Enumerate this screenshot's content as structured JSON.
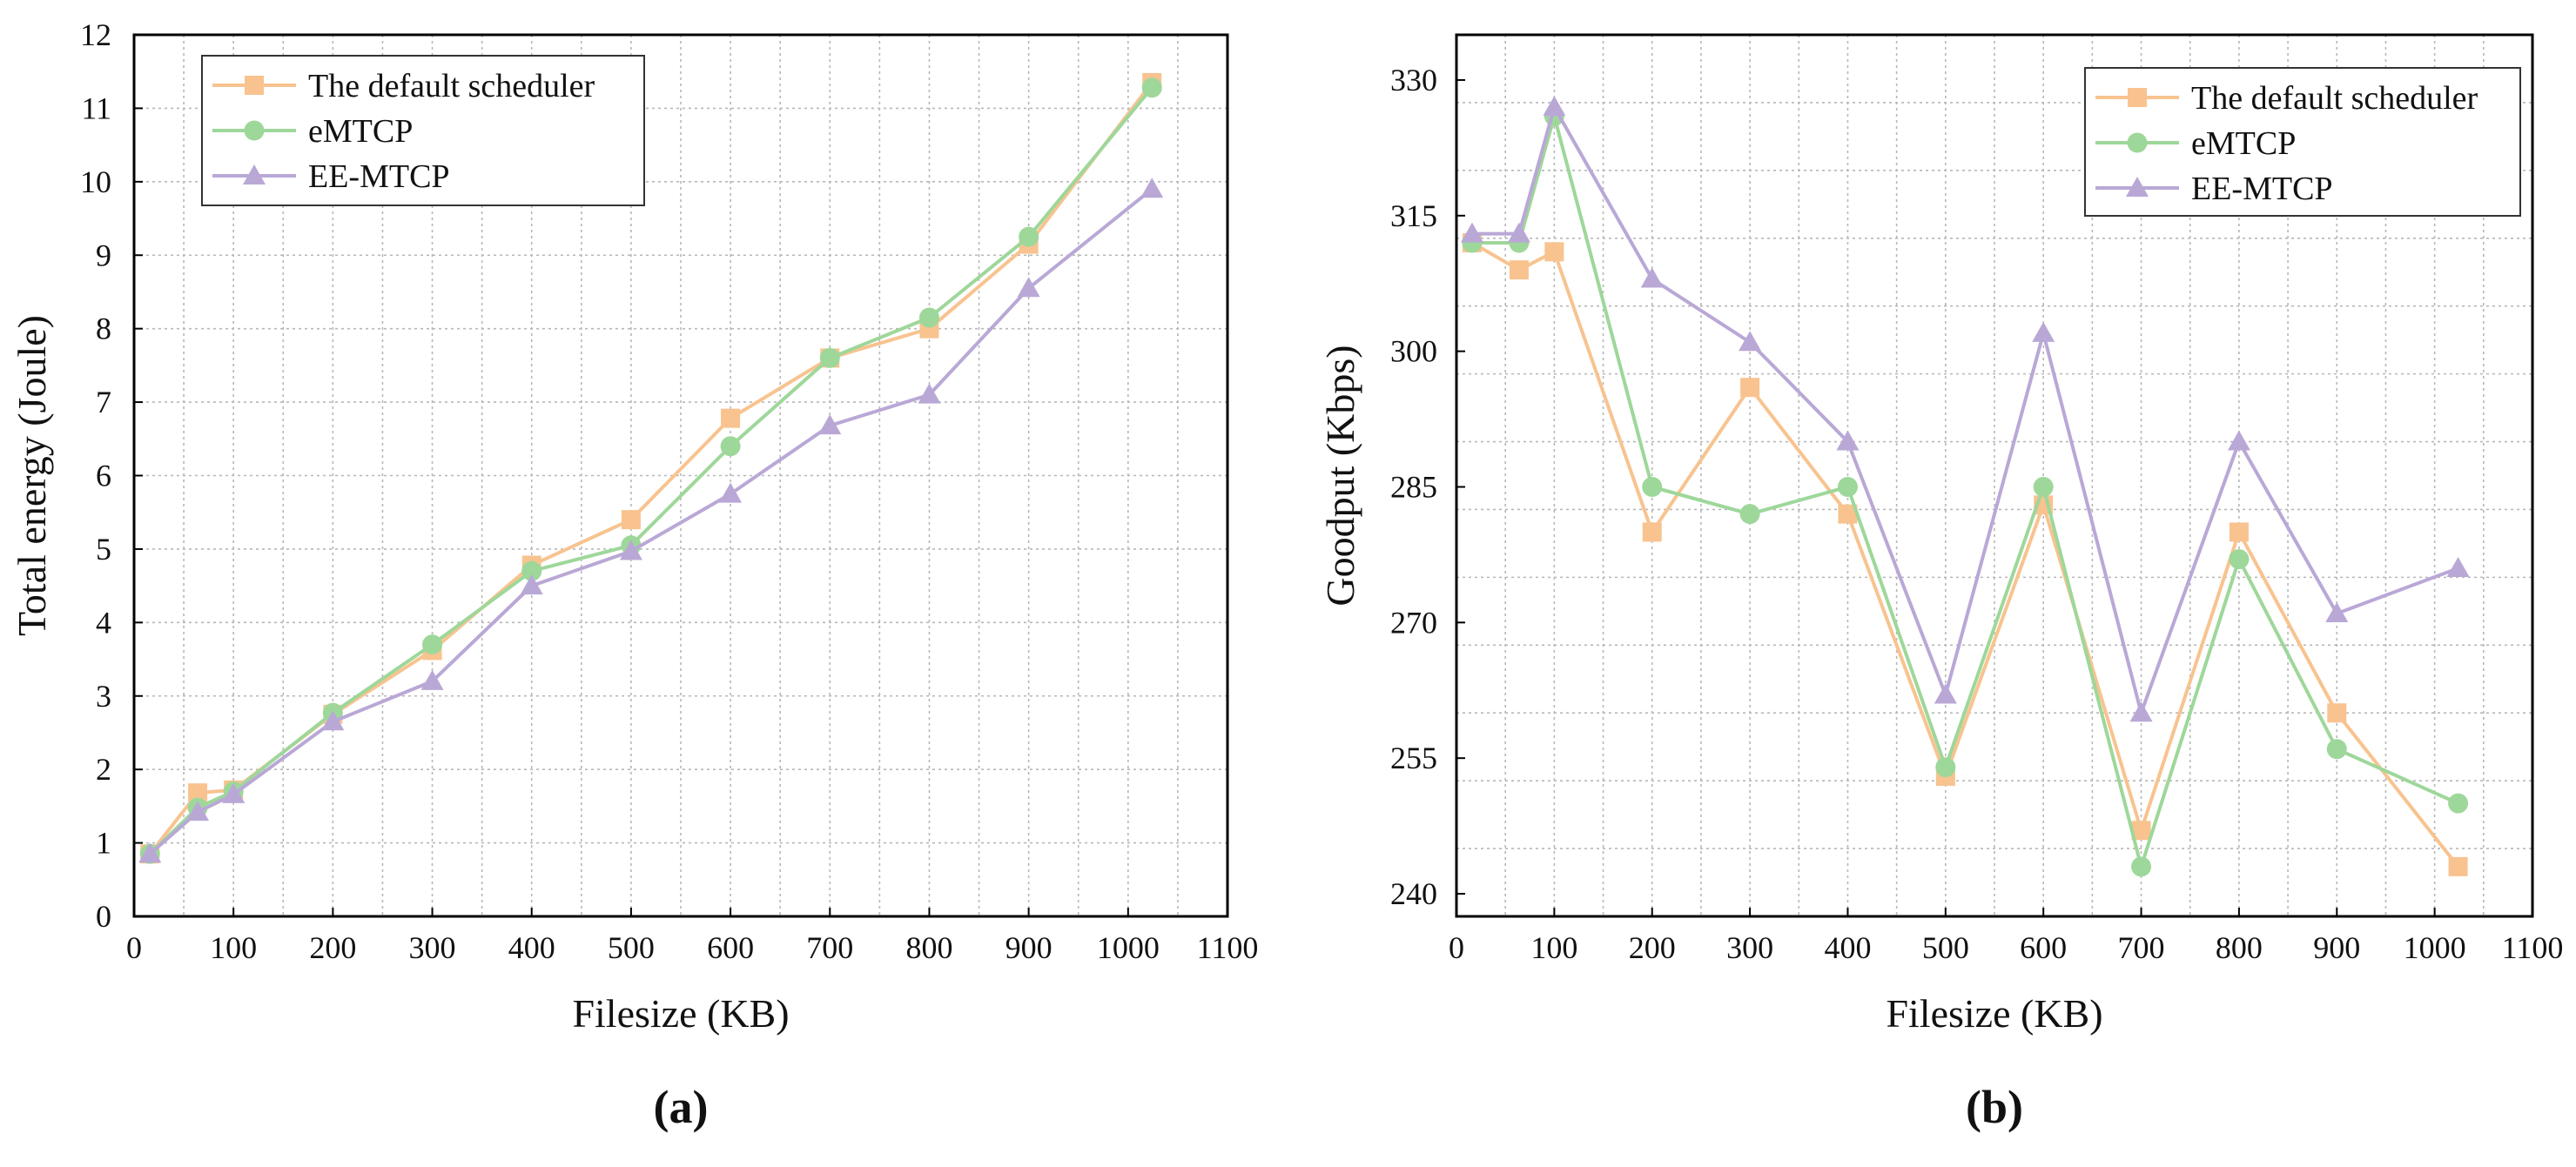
{
  "colors": {
    "default": "#F8C38F",
    "emtcp": "#9ED79A",
    "eemtcp": "#B9A8D6",
    "grid": "#b7b7b7",
    "axis": "#000000"
  },
  "chart_data": [
    {
      "type": "line",
      "panel_label": "(a)",
      "title": "",
      "xlabel": "Filesize (KB)",
      "ylabel": "Total energy (Joule)",
      "xlim": [
        0,
        1100
      ],
      "ylim": [
        0,
        12
      ],
      "xticks": [
        0,
        100,
        200,
        300,
        400,
        500,
        600,
        700,
        800,
        900,
        1000,
        1100
      ],
      "yticks": [
        0,
        1,
        2,
        3,
        4,
        5,
        6,
        7,
        8,
        9,
        10,
        11,
        12
      ],
      "x": [
        16,
        64,
        100,
        200,
        300,
        400,
        500,
        600,
        700,
        800,
        900,
        1024
      ],
      "legend_position": "top-left",
      "grid": true,
      "series": [
        {
          "name": "The default scheduler",
          "key": "default",
          "marker": "square",
          "values": [
            0.85,
            1.68,
            1.72,
            2.75,
            3.62,
            4.78,
            5.4,
            6.78,
            7.6,
            8.0,
            9.15,
            11.35
          ]
        },
        {
          "name": "eMTCP",
          "key": "emtcp",
          "marker": "circle",
          "values": [
            0.85,
            1.48,
            1.7,
            2.77,
            3.7,
            4.7,
            5.05,
            6.4,
            7.6,
            8.15,
            9.25,
            11.28
          ]
        },
        {
          "name": "EE-MTCP",
          "key": "eemtcp",
          "marker": "triangle",
          "values": [
            0.85,
            1.42,
            1.66,
            2.65,
            3.2,
            4.5,
            4.97,
            5.75,
            6.68,
            7.1,
            8.55,
            9.9
          ]
        }
      ]
    },
    {
      "type": "line",
      "panel_label": "(b)",
      "title": "",
      "xlabel": "Filesize (KB)",
      "ylabel": "Goodput (Kbps)",
      "xlim": [
        0,
        1100
      ],
      "ylim": [
        237.5,
        335
      ],
      "xticks": [
        0,
        100,
        200,
        300,
        400,
        500,
        600,
        700,
        800,
        900,
        1000,
        1100
      ],
      "yticks": [
        240,
        255,
        270,
        285,
        300,
        315,
        330
      ],
      "ygrid_step": 7.5,
      "x": [
        16,
        64,
        100,
        200,
        300,
        400,
        500,
        600,
        700,
        800,
        900,
        1024
      ],
      "legend_position": "top-right",
      "grid": true,
      "series": [
        {
          "name": "The default scheduler",
          "key": "default",
          "marker": "square",
          "values": [
            312,
            309,
            311,
            280,
            296,
            282,
            253,
            283,
            247,
            280,
            260,
            243
          ]
        },
        {
          "name": "eMTCP",
          "key": "emtcp",
          "marker": "circle",
          "values": [
            312,
            312,
            326,
            285,
            282,
            285,
            254,
            285,
            243,
            277,
            256,
            250
          ]
        },
        {
          "name": "EE-MTCP",
          "key": "eemtcp",
          "marker": "triangle",
          "values": [
            313,
            313,
            327,
            308,
            301,
            290,
            262,
            302,
            260,
            290,
            271,
            276
          ]
        }
      ]
    }
  ]
}
